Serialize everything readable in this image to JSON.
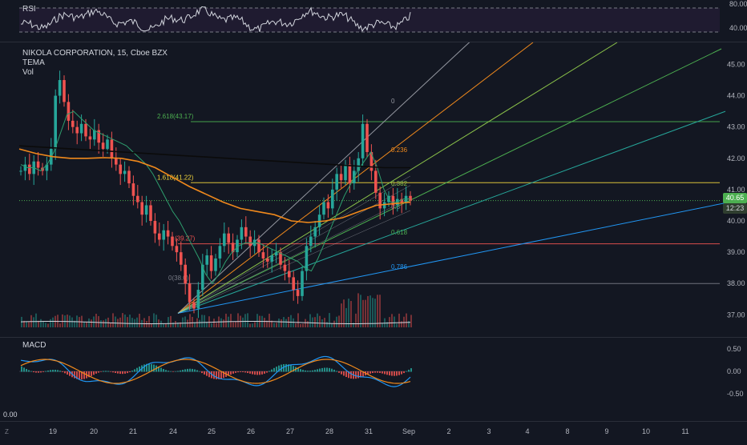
{
  "rsi": {
    "label": "RSI",
    "levels": [
      "80.00",
      "40.00"
    ]
  },
  "legend": {
    "symbol": "NIKOLA CORPORATION, 15, Cboe BZX",
    "study1": "TEMA",
    "study2": "Vol"
  },
  "price_axis": [
    "45.00",
    "44.00",
    "43.00",
    "42.00",
    "41.00",
    "40.00",
    "39.00",
    "38.00",
    "37.00"
  ],
  "current_price": "40.65",
  "countdown": "12:23",
  "fib": {
    "ext": "2.618(43.17)",
    "ext2": "1.618(41.22)",
    "lvl_0": "0",
    "lvl_236": "0.236",
    "lvl_382": "0.382",
    "lvl_618": "0.618",
    "lvl_786": "0.786",
    "lvl_1": "0.5",
    "lower1": "(39.27)",
    "lower2": "0(38.0)"
  },
  "macd": {
    "label": "MACD",
    "levels": [
      "0.50",
      "0.00",
      "-0.50"
    ]
  },
  "bottom_left_value": "0.00",
  "time_axis": [
    "19",
    "20",
    "21",
    "24",
    "25",
    "26",
    "27",
    "28",
    "31",
    "Sep",
    "2",
    "3",
    "4",
    "8",
    "9",
    "10",
    "11"
  ],
  "icons": {
    "timezone": "Z"
  },
  "colors": {
    "bg": "#131722",
    "up": "#26a69a",
    "down": "#ef5350",
    "orange": "#f0891c",
    "blue": "#2196f3",
    "current": "#4caf50"
  },
  "chart_data": {
    "type": "candlestick",
    "title": "NIKOLA CORPORATION, 15, Cboe BZX",
    "ylim": [
      36.6,
      45.6
    ],
    "close_series": [
      41.6,
      41.8,
      41.5,
      41.9,
      41.7,
      41.6,
      41.8,
      42.3,
      44.0,
      44.5,
      43.8,
      43.2,
      43.0,
      42.8,
      43.1,
      42.7,
      42.6,
      42.9,
      42.5,
      42.3,
      42.6,
      42.0,
      41.8,
      41.5,
      41.6,
      41.2,
      40.8,
      40.6,
      40.2,
      40.5,
      40.0,
      39.6,
      39.4,
      39.7,
      39.5,
      39.2,
      39.0,
      38.6,
      38.0,
      37.4,
      37.2,
      37.8,
      38.6,
      38.9,
      38.4,
      38.8,
      39.2,
      39.6,
      39.3,
      39.0,
      39.4,
      39.8,
      39.5,
      39.2,
      39.4,
      39.0,
      38.8,
      38.7,
      38.9,
      39.0,
      38.6,
      38.4,
      38.2,
      37.8,
      37.6,
      38.4,
      39.2,
      39.5,
      39.8,
      40.2,
      40.6,
      40.4,
      41.0,
      41.5,
      41.3,
      41.8,
      41.2,
      41.6,
      42.0,
      43.1,
      42.2,
      41.6,
      40.9,
      40.4,
      40.6,
      40.8,
      40.5,
      40.7,
      40.6,
      40.8,
      40.65
    ],
    "tema_series": [
      41.8,
      41.7,
      41.7,
      41.6,
      41.8,
      42.2,
      42.8,
      43.4,
      43.5,
      43.3,
      43.1,
      42.9,
      42.8,
      42.7,
      42.6,
      42.5,
      42.4,
      42.2,
      42.0,
      41.8,
      41.5,
      41.1,
      40.7,
      40.3,
      40.0,
      39.6,
      39.2,
      38.8,
      38.3,
      38.0,
      38.3,
      38.7,
      39.0,
      39.2,
      39.3,
      39.3,
      39.3,
      39.2,
      39.1,
      39.0,
      38.9,
      38.8,
      38.7,
      38.5,
      38.4,
      38.8,
      39.3,
      39.8,
      40.3,
      40.8,
      41.2,
      41.6,
      41.9,
      42.2,
      41.7,
      41.0,
      40.6,
      40.6,
      40.7,
      40.7
    ],
    "ma_orange": [
      42.3,
      42.15,
      42.05,
      42.0,
      42.0,
      42.02,
      42.0,
      41.9,
      41.7,
      41.4,
      41.1,
      40.85,
      40.6,
      40.4,
      40.3,
      40.2,
      40.0,
      39.95,
      40.0,
      40.1,
      40.3,
      40.5,
      40.55,
      40.6
    ],
    "ma_black": [
      42.4,
      42.35,
      42.3,
      42.25,
      42.2,
      42.15,
      42.1,
      42.05,
      42.0,
      41.95,
      41.9,
      41.85,
      41.8,
      41.75,
      41.7,
      41.7
    ],
    "fib_levels": [
      {
        "label": "2.618(43.17)",
        "value": 43.17
      },
      {
        "label": "1.618(41.22)",
        "value": 41.22
      },
      {
        "label": "(39.27)",
        "value": 39.27
      },
      {
        "label": "0(38.0)",
        "value": 38.0
      }
    ],
    "xticks": [
      "19",
      "20",
      "21",
      "24",
      "25",
      "26",
      "27",
      "28",
      "31",
      "Sep",
      "2",
      "3",
      "4",
      "8",
      "9",
      "10",
      "11"
    ]
  }
}
